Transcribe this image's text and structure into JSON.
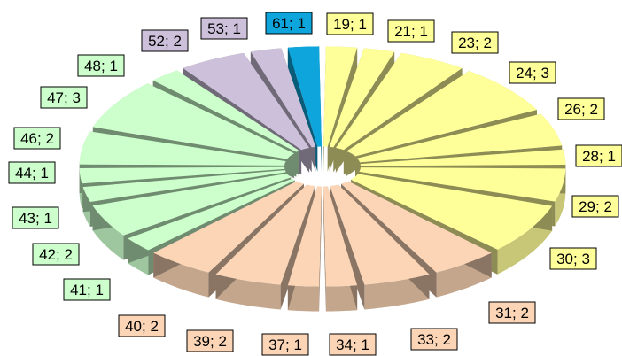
{
  "chart_data": {
    "type": "pie",
    "style": "3d-exploded",
    "categories": [
      "19",
      "21",
      "23",
      "24",
      "26",
      "28",
      "29",
      "30",
      "31",
      "33",
      "34",
      "37",
      "39",
      "40",
      "41",
      "42",
      "43",
      "44",
      "46",
      "47",
      "48",
      "52",
      "53",
      "61"
    ],
    "values": [
      1,
      1,
      2,
      3,
      2,
      1,
      2,
      3,
      2,
      2,
      1,
      1,
      2,
      2,
      1,
      2,
      1,
      1,
      2,
      3,
      1,
      2,
      1,
      1
    ],
    "labels": [
      "19; 1",
      "21; 1",
      "23; 2",
      "24; 3",
      "26; 2",
      "28; 1",
      "29; 2",
      "30; 3",
      "31; 2",
      "33; 2",
      "34; 1",
      "37; 1",
      "39; 2",
      "40; 2",
      "41; 1",
      "42; 2",
      "43; 1",
      "44; 1",
      "46; 2",
      "47; 3",
      "48; 1",
      "52; 2",
      "53; 1",
      "61; 1"
    ],
    "slice_colors": [
      "#ffff99",
      "#ffff99",
      "#ffff99",
      "#ffff99",
      "#ffff99",
      "#ffff99",
      "#ffff99",
      "#ffff99",
      "#fbd5b5",
      "#fbd5b5",
      "#fbd5b5",
      "#fbd5b5",
      "#fbd5b5",
      "#fbd5b5",
      "#ccffcc",
      "#ccffcc",
      "#ccffcc",
      "#ccffcc",
      "#ccffcc",
      "#ccffcc",
      "#ccffcc",
      "#ccc0da",
      "#ccc0da",
      "#0ea5dc"
    ],
    "title": "",
    "legend": "none"
  }
}
